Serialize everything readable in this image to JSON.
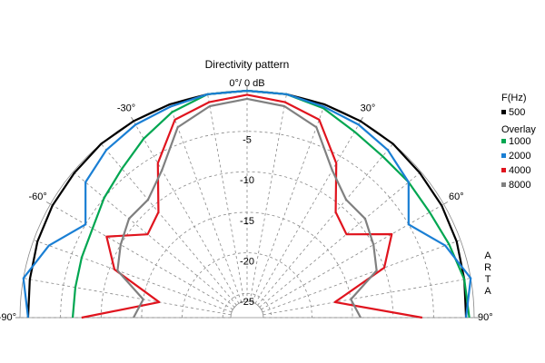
{
  "chart_data": {
    "type": "polar",
    "title": "Directivity pattern",
    "theta": [
      -90,
      -80,
      -70,
      -60,
      -50,
      -40,
      -30,
      -20,
      -10,
      0,
      10,
      20,
      30,
      40,
      50,
      60,
      70,
      80,
      90
    ],
    "thetalim": [
      -90,
      90
    ],
    "thetaticks": [
      {
        "value": -90,
        "label": "-90°"
      },
      {
        "value": -60,
        "label": "-60°"
      },
      {
        "value": -30,
        "label": "-30°"
      },
      {
        "value": 0,
        "label": "0°/ 0 dB"
      },
      {
        "value": 30,
        "label": "30°"
      },
      {
        "value": 60,
        "label": "60°"
      },
      {
        "value": 90,
        "label": "90°"
      }
    ],
    "rlim": [
      -28,
      0
    ],
    "rticks": [
      -5,
      -10,
      -15,
      -20,
      -25
    ],
    "grid": true,
    "legend_title": "F(Hz)",
    "legend_subtitle": "Overlay",
    "watermark": "ARTA",
    "series": [
      {
        "name": "500",
        "color": "#000000",
        "values": [
          -1,
          -0.8,
          -0.5,
          -0.3,
          -0.2,
          0,
          0,
          0,
          0,
          0,
          0,
          0,
          0,
          0,
          -0.2,
          -0.3,
          -0.5,
          -0.8,
          -1
        ]
      },
      {
        "name": "1000",
        "color": "#00a651",
        "values": [
          -6.5,
          -6.5,
          -6.3,
          -6,
          -5,
          -4,
          -2.5,
          -1,
          0,
          0,
          0,
          -0.5,
          -1.5,
          -2,
          -2,
          -2,
          -1.5,
          -0.8,
          -0.6
        ]
      },
      {
        "name": "2000",
        "color": "#1a7fd4",
        "values": [
          -1,
          0,
          -2,
          -5,
          -2,
          -1,
          -0.5,
          -0.3,
          0,
          0,
          0,
          -0.3,
          -0.5,
          -1,
          -2,
          -5,
          -2,
          0,
          -1
        ]
      },
      {
        "name": "4000",
        "color": "#e0141e",
        "values": [
          -7.6,
          -17,
          -10.6,
          -8,
          -12,
          -11,
          -6,
          -2,
          -1,
          -0.5,
          -1,
          -2,
          -6,
          -11,
          -12,
          -7.4,
          -10,
          -17,
          -6.4
        ]
      },
      {
        "name": "8000",
        "color": "#808080",
        "values": [
          -14,
          -15,
          -11,
          -10,
          -9,
          -9,
          -7,
          -3,
          -1.5,
          -1,
          -1.5,
          -3,
          -7,
          -9,
          -9,
          -10,
          -11,
          -15,
          -14
        ]
      }
    ]
  }
}
